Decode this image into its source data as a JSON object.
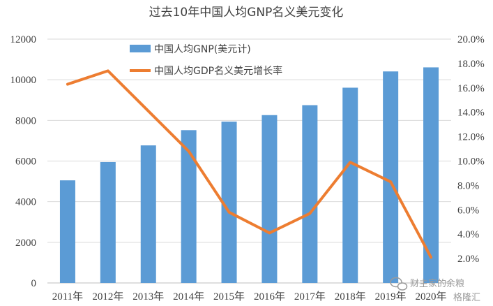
{
  "chart_data": {
    "type": "bar",
    "title": "过去10年中国人均GNP名义美元变化",
    "categories": [
      "2011年",
      "2012年",
      "2013年",
      "2014年",
      "2015年",
      "2016年",
      "2017年",
      "2018年",
      "2019年",
      "2020年"
    ],
    "series": [
      {
        "name": "中国人均GNP(美元计)",
        "type": "bar",
        "axis": "left",
        "color": "#5b9bd5",
        "values": [
          5050,
          5950,
          6770,
          7520,
          7940,
          8260,
          8750,
          9610,
          10410,
          10610
        ]
      },
      {
        "name": "中国人均GDP名义美元增长率",
        "type": "line",
        "axis": "right",
        "color": "#ed7d31",
        "values": [
          16.3,
          17.4,
          14.1,
          10.8,
          5.8,
          4.1,
          5.7,
          9.9,
          8.3,
          2.1
        ]
      }
    ],
    "ylim_left": [
      0,
      12000
    ],
    "yticks_left": [
      "0",
      "2000",
      "4000",
      "6000",
      "8000",
      "10000",
      "12000"
    ],
    "ylim_right": [
      0,
      20
    ],
    "yticks_right": [
      "",
      "2.0%",
      "4.0%",
      "6.0%",
      "8.0%",
      "10.0%",
      "12.0%",
      "14.0%",
      "16.0%",
      "18.0%",
      "20.0%"
    ],
    "grid": true,
    "legend_position": "top-center"
  },
  "watermark": {
    "text": "财主家的余粮",
    "icon": "wechat-icon",
    "logo_text": "格隆汇"
  }
}
